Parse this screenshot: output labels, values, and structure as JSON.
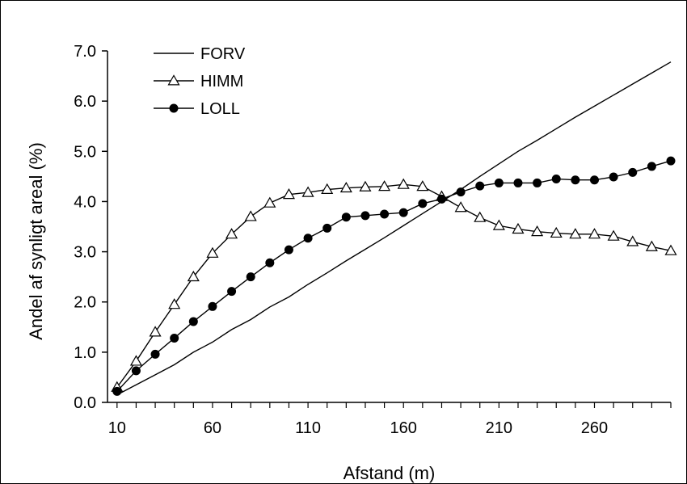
{
  "chart_data": {
    "type": "line",
    "xlabel": "Afstand (m)",
    "ylabel": "Andel af synligt areal (%)",
    "xlim": [
      5,
      300
    ],
    "ylim": [
      0,
      7
    ],
    "x_ticks": [
      10,
      60,
      110,
      160,
      210,
      260
    ],
    "y_ticks": [
      "0.0",
      "1.0",
      "2.0",
      "3.0",
      "4.0",
      "5.0",
      "6.0",
      "7.0"
    ],
    "grid": false,
    "legend_position": "top-left",
    "x": [
      10,
      20,
      30,
      40,
      50,
      60,
      70,
      80,
      90,
      100,
      110,
      120,
      130,
      140,
      150,
      160,
      170,
      180,
      190,
      200,
      210,
      220,
      230,
      240,
      250,
      260,
      270,
      280,
      290,
      300
    ],
    "series": [
      {
        "name": "FORV",
        "marker": "none",
        "color": "#000000",
        "values": [
          0.15,
          0.35,
          0.55,
          0.75,
          1.0,
          1.2,
          1.45,
          1.65,
          1.9,
          2.1,
          2.35,
          2.58,
          2.82,
          3.05,
          3.28,
          3.52,
          3.76,
          4.0,
          4.24,
          4.5,
          4.75,
          5.0,
          5.22,
          5.45,
          5.68,
          5.9,
          6.12,
          6.34,
          6.56,
          6.78
        ]
      },
      {
        "name": "HIMM",
        "marker": "open-triangle",
        "color": "#000000",
        "values": [
          0.3,
          0.82,
          1.4,
          1.95,
          2.5,
          2.97,
          3.35,
          3.7,
          3.97,
          4.14,
          4.18,
          4.24,
          4.27,
          4.29,
          4.3,
          4.34,
          4.3,
          4.1,
          3.88,
          3.68,
          3.52,
          3.45,
          3.4,
          3.37,
          3.35,
          3.35,
          3.31,
          3.2,
          3.1,
          3.02
        ]
      },
      {
        "name": "LOLL",
        "marker": "filled-circle",
        "color": "#000000",
        "values": [
          0.22,
          0.63,
          0.96,
          1.28,
          1.61,
          1.91,
          2.21,
          2.5,
          2.78,
          3.04,
          3.27,
          3.47,
          3.69,
          3.72,
          3.75,
          3.78,
          3.96,
          4.05,
          4.19,
          4.31,
          4.37,
          4.37,
          4.37,
          4.45,
          4.43,
          4.43,
          4.49,
          4.58,
          4.7,
          4.81
        ]
      }
    ]
  }
}
